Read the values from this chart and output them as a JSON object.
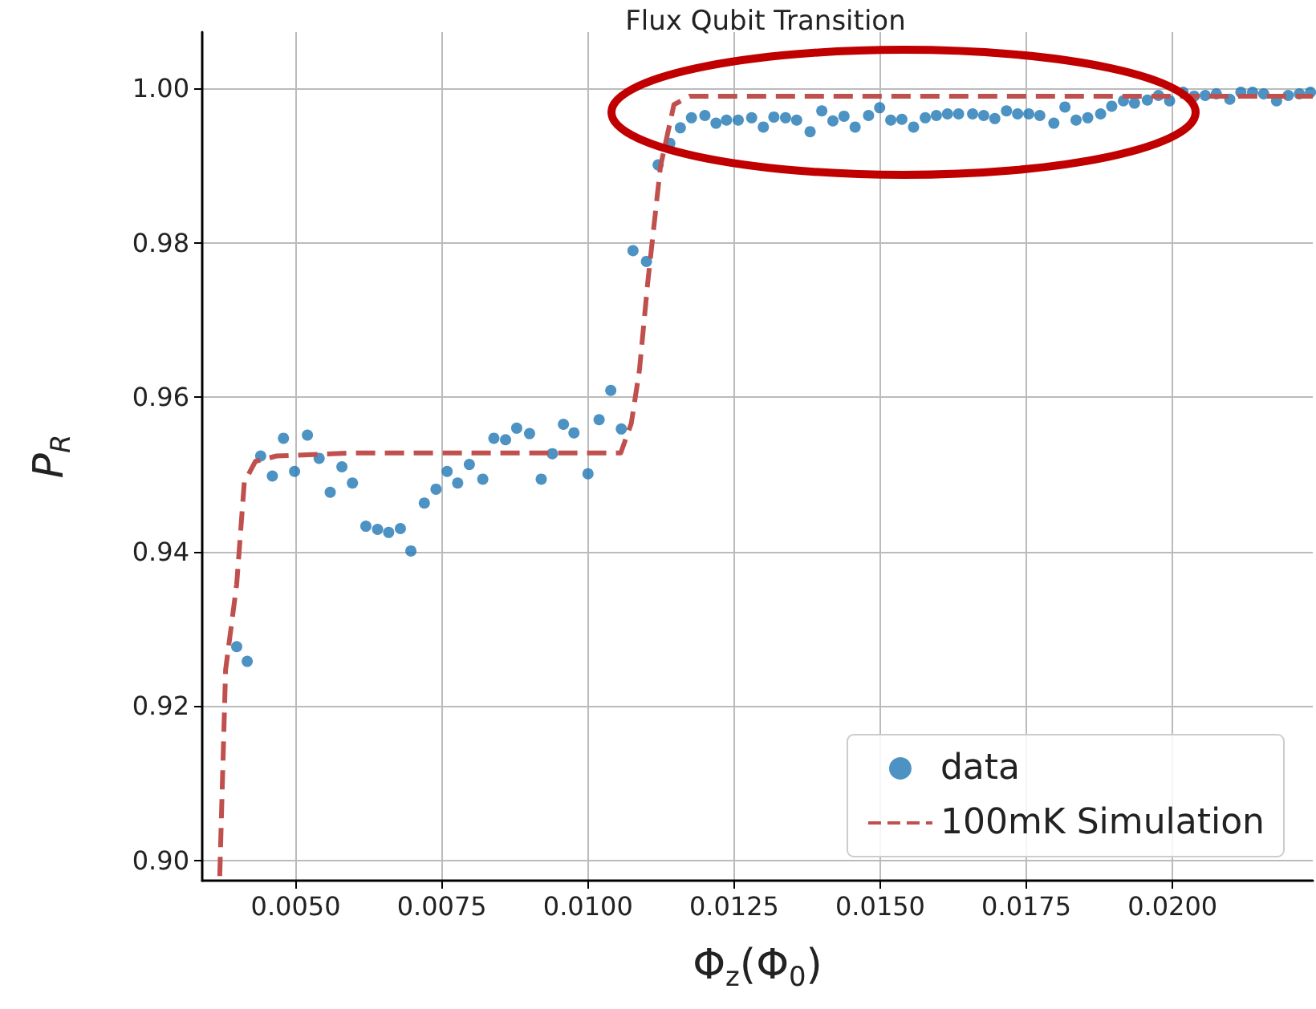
{
  "chart_data": {
    "type": "scatter",
    "title": "Flux Qubit Transition",
    "xlabel": "Φ$_{z}$(Φ$_{0}$)",
    "ylabel": "P$_{R}$",
    "xlim": [
      0.0034,
      0.0224
    ],
    "ylim": [
      0.8974,
      1.0073
    ],
    "xticks": [
      {
        "value": 0.005,
        "label": "0.0050"
      },
      {
        "value": 0.0075,
        "label": "0.0075"
      },
      {
        "value": 0.01,
        "label": "0.0100"
      },
      {
        "value": 0.0125,
        "label": "0.0125"
      },
      {
        "value": 0.015,
        "label": "0.0150"
      },
      {
        "value": 0.0175,
        "label": "0.0175"
      },
      {
        "value": 0.02,
        "label": "0.0200"
      }
    ],
    "yticks": [
      {
        "value": 0.9,
        "label": "0.90"
      },
      {
        "value": 0.92,
        "label": "0.92"
      },
      {
        "value": 0.94,
        "label": "0.94"
      },
      {
        "value": 0.96,
        "label": "0.96"
      },
      {
        "value": 0.98,
        "label": "0.98"
      },
      {
        "value": 1.0,
        "label": "1.00"
      }
    ],
    "grid": true,
    "legend": "bottom right",
    "series": [
      {
        "name": "data",
        "color": "#1f77b4",
        "marker": "circle",
        "x": [
          0.00399,
          0.00417,
          0.0044,
          0.0046,
          0.00479,
          0.00498,
          0.0052,
          0.0054,
          0.00559,
          0.00579,
          0.00597,
          0.0062,
          0.0064,
          0.00659,
          0.00679,
          0.00697,
          0.0072,
          0.0074,
          0.00759,
          0.00777,
          0.00797,
          0.0082,
          0.00839,
          0.00859,
          0.00878,
          0.009,
          0.0092,
          0.00939,
          0.00958,
          0.00976,
          0.01,
          0.01019,
          0.01039,
          0.01057,
          0.01077,
          0.011,
          0.0112,
          0.0114,
          0.01158,
          0.01177,
          0.012,
          0.01219,
          0.01237,
          0.01257,
          0.0128,
          0.013,
          0.01318,
          0.01338,
          0.01357,
          0.0138,
          0.014,
          0.01419,
          0.01438,
          0.01457,
          0.0148,
          0.01499,
          0.01518,
          0.01537,
          0.01557,
          0.01577,
          0.01596,
          0.01615,
          0.01634,
          0.01658,
          0.01677,
          0.01696,
          0.01716,
          0.01735,
          0.01754,
          0.01773,
          0.01797,
          0.01816,
          0.01835,
          0.01855,
          0.01877,
          0.01896,
          0.01916,
          0.01935,
          0.01957,
          0.01976,
          0.01995,
          0.02018,
          0.02037,
          0.02056,
          0.02075,
          0.02098,
          0.02117,
          0.02137,
          0.02156,
          0.02178,
          0.02198,
          0.02217,
          0.02236
        ],
        "values": [
          0.9277,
          0.9258,
          0.9524,
          0.9498,
          0.9547,
          0.9504,
          0.9551,
          0.9521,
          0.9477,
          0.951,
          0.9489,
          0.9433,
          0.9429,
          0.9425,
          0.943,
          0.9401,
          0.9463,
          0.9481,
          0.9504,
          0.9489,
          0.9513,
          0.9494,
          0.9547,
          0.9545,
          0.956,
          0.9553,
          0.9494,
          0.9527,
          0.9565,
          0.9554,
          0.9501,
          0.9571,
          0.9609,
          0.9559,
          0.979,
          0.9776,
          0.9901,
          0.9929,
          0.9949,
          0.9962,
          0.9965,
          0.9955,
          0.9959,
          0.9959,
          0.9962,
          0.995,
          0.9963,
          0.9962,
          0.9959,
          0.9944,
          0.9971,
          0.9958,
          0.9964,
          0.995,
          0.9965,
          0.9975,
          0.9959,
          0.996,
          0.995,
          0.9962,
          0.9965,
          0.9967,
          0.9967,
          0.9967,
          0.9965,
          0.9961,
          0.9971,
          0.9967,
          0.9967,
          0.9965,
          0.9955,
          0.9976,
          0.9959,
          0.9962,
          0.9967,
          0.9977,
          0.9984,
          0.9981,
          0.9985,
          0.9991,
          0.9984,
          0.9995,
          0.999,
          0.9991,
          0.9993,
          0.9986,
          0.9995,
          0.9995,
          0.9993,
          0.9984,
          0.9991,
          0.9993,
          0.9995
        ]
      },
      {
        "name": "100mK Simulation",
        "type": "line",
        "color": "#c0504d",
        "marker": "none",
        "line_style": "dashed",
        "x": [
          0.0037,
          0.0038,
          0.00399,
          0.00412,
          0.00431,
          0.00467,
          0.006,
          0.008,
          0.01,
          0.01056,
          0.01074,
          0.01088,
          0.01102,
          0.01124,
          0.01147,
          0.01174,
          0.014,
          0.018,
          0.0224
        ],
        "values": [
          0.898,
          0.9247,
          0.9358,
          0.949,
          0.9517,
          0.9524,
          0.9528,
          0.9528,
          0.9528,
          0.9528,
          0.9566,
          0.9635,
          0.9747,
          0.9899,
          0.9979,
          0.999,
          0.999,
          0.999,
          0.999
        ]
      }
    ]
  }
}
